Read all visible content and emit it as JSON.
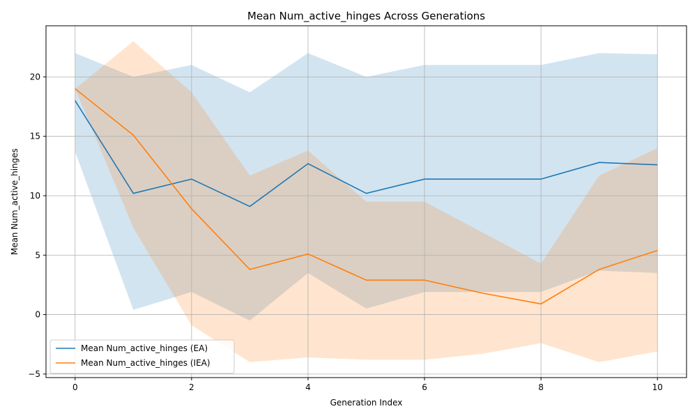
{
  "chart_data": {
    "type": "line",
    "title": "Mean Num_active_hinges Across Generations",
    "xlabel": "Generation Index",
    "ylabel": "Mean Num_active_hinges",
    "xlim": [
      -0.5,
      10.5
    ],
    "ylim": [
      -5.3,
      24.3
    ],
    "xticks": [
      0,
      2,
      4,
      6,
      8,
      10
    ],
    "yticks": [
      -5,
      0,
      5,
      10,
      15,
      20
    ],
    "grid": true,
    "legend_position": "lower-left",
    "x": [
      0,
      1,
      2,
      3,
      4,
      5,
      6,
      7,
      8,
      9,
      10
    ],
    "series": [
      {
        "name": "Mean Num_active_hinges (EA)",
        "color": "#1f77b4",
        "band_color": "#1f77b4",
        "values": [
          18.0,
          10.2,
          11.4,
          9.1,
          12.7,
          10.2,
          11.4,
          11.4,
          11.4,
          12.8,
          12.6
        ],
        "upper": [
          22.0,
          20.0,
          21.0,
          18.7,
          22.0,
          20.0,
          21.0,
          21.0,
          21.0,
          22.0,
          21.9
        ],
        "lower": [
          13.7,
          0.4,
          1.9,
          -0.5,
          3.5,
          0.5,
          1.9,
          1.9,
          1.9,
          3.7,
          3.5
        ]
      },
      {
        "name": "Mean Num_active_hinges (IEA)",
        "color": "#ff7f0e",
        "band_color": "#ff7f0e",
        "values": [
          19.0,
          15.1,
          8.9,
          3.8,
          5.1,
          2.9,
          2.9,
          1.8,
          0.9,
          3.8,
          5.4
        ],
        "upper": [
          19.0,
          23.0,
          18.7,
          11.7,
          13.8,
          9.5,
          9.5,
          6.9,
          4.3,
          11.7,
          14.0
        ],
        "lower": [
          19.0,
          7.3,
          -0.9,
          -4.0,
          -3.6,
          -3.8,
          -3.8,
          -3.3,
          -2.4,
          -4.0,
          -3.1
        ]
      }
    ]
  }
}
